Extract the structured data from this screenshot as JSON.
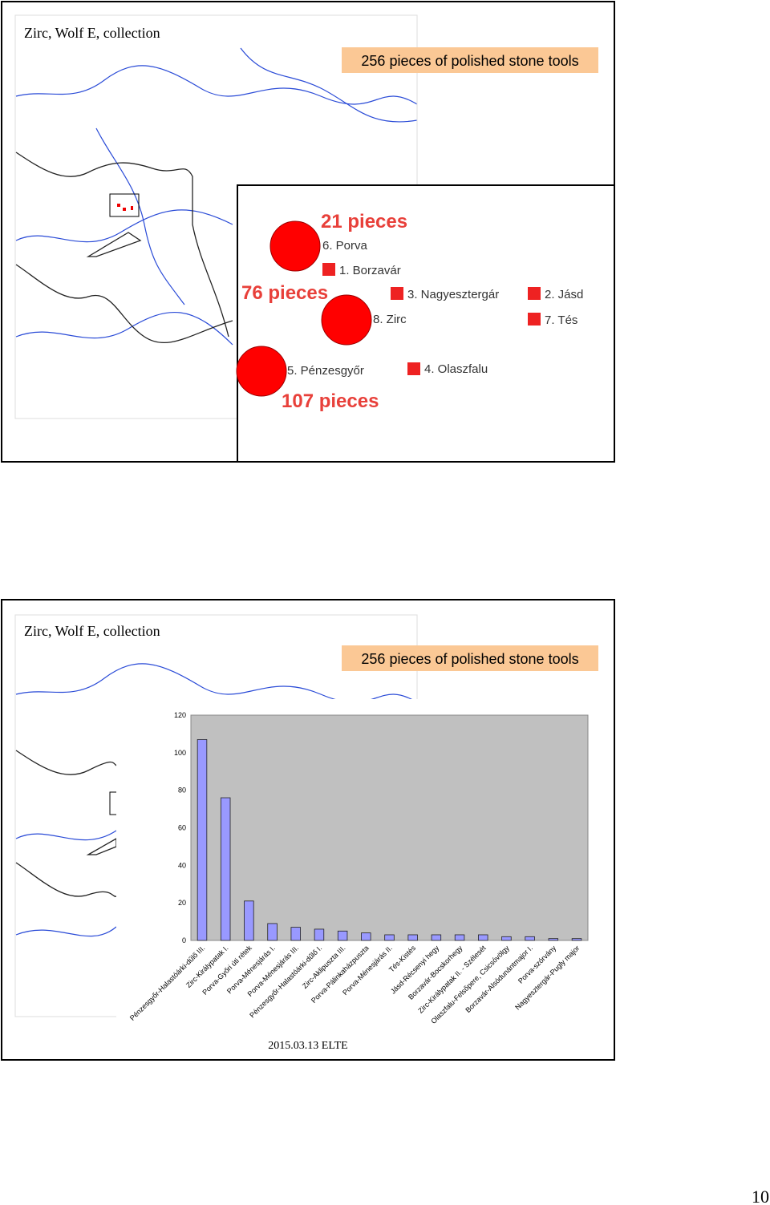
{
  "slide1": {
    "title": "Zirc, Wolf E, collection",
    "banner": "256 pieces of polished stone tools",
    "labels": {
      "porva_count": "21 pieces",
      "porva": "6. Porva",
      "borzavar": "1. Borzavár",
      "zirc_count": "76 pieces",
      "nagyesztergar": "3. Nagyesztergár",
      "jasd": "2. Jásd",
      "zirc": "8. Zirc",
      "tes": "7. Tés",
      "penzesgyor": "5. Pénzesgyőr",
      "olaszfalu": "4. Olaszfalu",
      "penzesgyor_count": "107 pieces"
    }
  },
  "slide2": {
    "title": "Zirc, Wolf E, collection",
    "banner": "256 pieces of polished stone tools",
    "footer": "2015.03.13 ELTE"
  },
  "page_number": "10",
  "chart_data": {
    "type": "bar",
    "categories": [
      "Pénzesgyőr-Halastóárki-dűlő III.",
      "Zirc-Királypatak I.",
      "Porva-Győri úti rétek",
      "Porva-Ménesjárás I.",
      "Porva-Ménesjárás III.",
      "Pénzesgyőr-Halastóárki-dűlő I.",
      "Zirc-Aklipuszta III.",
      "Porva-Pálinkaházpuszta",
      "Porva-Ménesjárás II.",
      "Tés-Kistés",
      "Jásd-Récsenyi hegy",
      "Borzavár-Bocskorhegy",
      "Zirc-Királypatak II. - Szélesét",
      "Olaszfalu-Felsőpere, Csicsóvölgy",
      "Borzavár-Alsódunántmajor I.",
      "Porva-szórvány",
      "Nagyesztergár-Pugly major"
    ],
    "values": [
      107,
      76,
      21,
      9,
      7,
      6,
      5,
      4,
      3,
      3,
      3,
      3,
      3,
      2,
      2,
      1,
      1
    ],
    "color": "#9999ff",
    "ylim": [
      0,
      120
    ],
    "yticks": [
      0,
      20,
      40,
      60,
      80,
      100,
      120
    ],
    "grid": false
  }
}
